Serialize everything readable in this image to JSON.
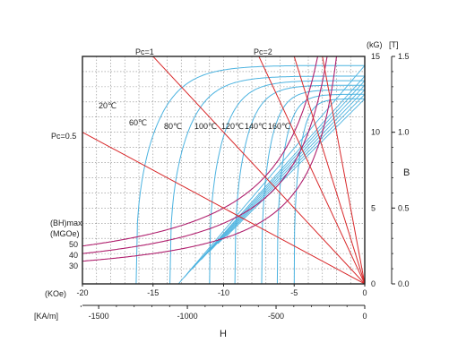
{
  "chart_data": {
    "type": "line",
    "title": "",
    "xlabel": "H",
    "ylabel": "B",
    "x_units": {
      "primary": "(KOe)",
      "secondary": "[KA/m]"
    },
    "y_units": {
      "primary": "(kG)",
      "secondary": "[T]"
    },
    "xlim": [
      -20,
      0
    ],
    "ylim": [
      0,
      15
    ],
    "grid": true,
    "x_ticks_koe": [
      {
        "value": -20,
        "label": "-20"
      },
      {
        "value": -15,
        "label": "-15"
      },
      {
        "value": -10,
        "label": "-10"
      },
      {
        "value": -5,
        "label": "-5"
      },
      {
        "value": 0,
        "label": "0"
      }
    ],
    "x_ticks_kam": [
      {
        "value": -1500,
        "label": "-1500"
      },
      {
        "value": -1000,
        "label": "-1000"
      },
      {
        "value": -500,
        "label": "-500"
      },
      {
        "value": 0,
        "label": "0"
      }
    ],
    "y_ticks_kg": [
      {
        "value": 0,
        "label": "0"
      },
      {
        "value": 5,
        "label": "5"
      },
      {
        "value": 10,
        "label": "10"
      },
      {
        "value": 15,
        "label": "15"
      }
    ],
    "y_ticks_t": [
      {
        "value": 0,
        "label": "0.0"
      },
      {
        "value": 0.5,
        "label": "0.5"
      },
      {
        "value": 1.0,
        "label": "1.0"
      },
      {
        "value": 1.5,
        "label": "1.5"
      }
    ],
    "temperature_curves": [
      {
        "label": "20℃",
        "hcj": -16.2,
        "br": 14.4
      },
      {
        "label": "60℃",
        "hcj": -13.8,
        "br": 13.7
      },
      {
        "label": "80℃",
        "hcj": -11.0,
        "br": 13.4
      },
      {
        "label": "100℃",
        "hcj": -9.2,
        "br": 13.1
      },
      {
        "label": "120℃",
        "hcj": -7.3,
        "br": 12.8
      },
      {
        "label": "140℃",
        "hcj": -6.2,
        "br": 12.5
      },
      {
        "label": "160℃",
        "hcj": -5.0,
        "br": 12.2
      }
    ],
    "normal_curves": [
      {
        "hc_end": -13.5,
        "br": 14.4
      },
      {
        "hc_end": -12.8,
        "br": 13.7
      },
      {
        "hc_end": -12.2,
        "br": 13.4
      },
      {
        "hc_end": -11.6,
        "br": 13.1
      },
      {
        "hc_end": -11.0,
        "br": 12.8
      },
      {
        "hc_end": -10.4,
        "br": 12.5
      },
      {
        "hc_end": -9.8,
        "br": 12.2
      }
    ],
    "energy_product_curves": {
      "title_line1": "(BH)max",
      "title_line2": "(MGOe)",
      "series": [
        {
          "label": "50",
          "value": 50
        },
        {
          "label": "40",
          "value": 40
        },
        {
          "label": "30",
          "value": 30
        }
      ]
    },
    "load_lines": [
      {
        "label": "Pc=0.5",
        "pc": 0.5
      },
      {
        "label": "Pc=1",
        "pc": 1
      },
      {
        "label": "Pc=2",
        "pc": 2
      }
    ],
    "extra_load_line_slopes": [
      3,
      5
    ],
    "colors": {
      "temperature": "#4cb3e0",
      "energy": "#b0206e",
      "load_line": "#d8282a",
      "frame": "#222222",
      "grid": "#888888"
    }
  }
}
